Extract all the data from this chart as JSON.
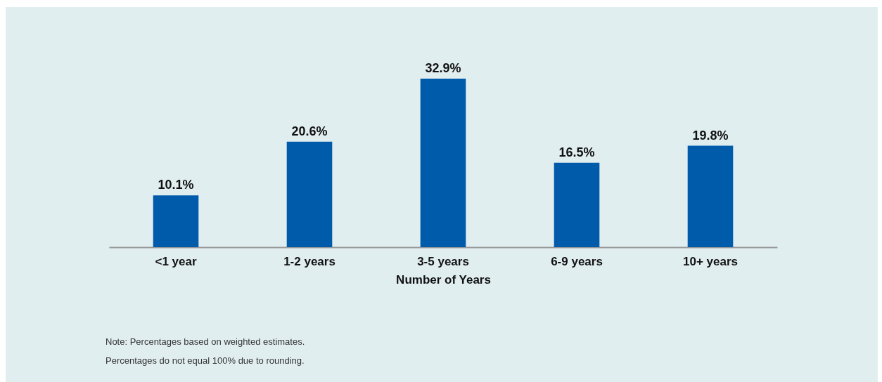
{
  "chart_data": {
    "type": "bar",
    "xlabel": "Number of Years",
    "categories": [
      "<1 year",
      "1-2 years",
      "3-5 years",
      "6-9 years",
      "10+ years"
    ],
    "values": [
      10.1,
      20.6,
      32.9,
      16.5,
      19.8
    ],
    "color": "#005baa",
    "value_labels": [
      "10.1%",
      "20.6%",
      "32.9%",
      "16.5%",
      "19.8%"
    ],
    "annotations": [
      "Note: Percentages based on weighted estimates.",
      "Percentages do not equal 100% due to rounding."
    ]
  }
}
